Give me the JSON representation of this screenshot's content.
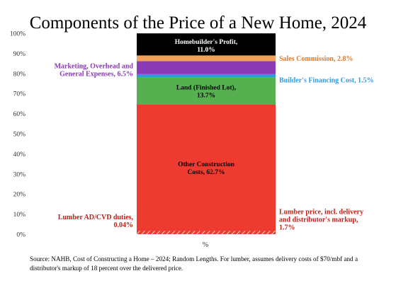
{
  "chart_data": {
    "type": "bar",
    "stacked": true,
    "title": "Components of the Price of a New Home, 2024",
    "xlabel": "%",
    "ylabel": "",
    "ylim": [
      0,
      100
    ],
    "yticks": [
      "0%",
      "10%",
      "20%",
      "30%",
      "40%",
      "50%",
      "60%",
      "70%",
      "80%",
      "90%",
      "100%"
    ],
    "grid": false,
    "series": [
      {
        "key": "lumber_price",
        "name": "Lumber price, incl. delivery and distributor's markup, 1.7%",
        "value": 1.7,
        "color": "#ee3b30",
        "hatched": true,
        "label_lines": [
          "Lumber price, incl. delivery",
          "and distributor's markup,",
          "1.7%"
        ],
        "label_color": "#c0201a"
      },
      {
        "key": "lumber_adcvd",
        "name": "Lumber AD/CVD duties, 0.04%",
        "value": 0.04,
        "color": "#ee3b30",
        "label_lines": [
          "Lumber AD/CVD duties,",
          "0.04%"
        ],
        "label_color": "#c0201a"
      },
      {
        "key": "other_construction",
        "name": "Other Construction Costs, 62.7%",
        "value": 62.7,
        "color": "#ee3b30",
        "label_lines": [
          "Other Construction",
          "Costs, 62.7%"
        ],
        "label_color": "#000000"
      },
      {
        "key": "land",
        "name": "Land (Finished Lot), 13.7%",
        "value": 13.7,
        "color": "#56b04f",
        "label_lines": [
          "Land (Finished Lot),",
          "13.7%"
        ],
        "label_color": "#000000"
      },
      {
        "key": "financing",
        "name": "Builder's Financing Cost, 1.5%",
        "value": 1.5,
        "color": "#2e9be0",
        "label_lines": [
          "Builder's Financing Cost, 1.5%"
        ],
        "label_color": "#2e9be0"
      },
      {
        "key": "marketing",
        "name": "Marketing, Overhead and General Expenses, 6.5%",
        "value": 6.5,
        "color": "#8b3ab5",
        "label_lines": [
          "Marketing, Overhead and",
          "General Expenses, 6.5%"
        ],
        "label_color": "#8b3ab5"
      },
      {
        "key": "sales",
        "name": "Sales Commission, 2.8%",
        "value": 2.8,
        "color": "#f2a15a",
        "label_lines": [
          "Sales Commission, 2.8%"
        ],
        "label_color": "#e07a2e"
      },
      {
        "key": "profit",
        "name": "Homebuilder's Profit, 11.0%",
        "value": 11.0,
        "color": "#000000",
        "label_lines": [
          "Homebuilder's Profit,",
          "11.0%"
        ],
        "label_color": "#ffffff"
      }
    ]
  },
  "source_note": "Source: NAHB, Cost of Constructing a Home – 2024; Random Lengths.  For lumber, assumes delivery costs of $70/mbf and a distributor's markup of 18 percent over the delivered price."
}
